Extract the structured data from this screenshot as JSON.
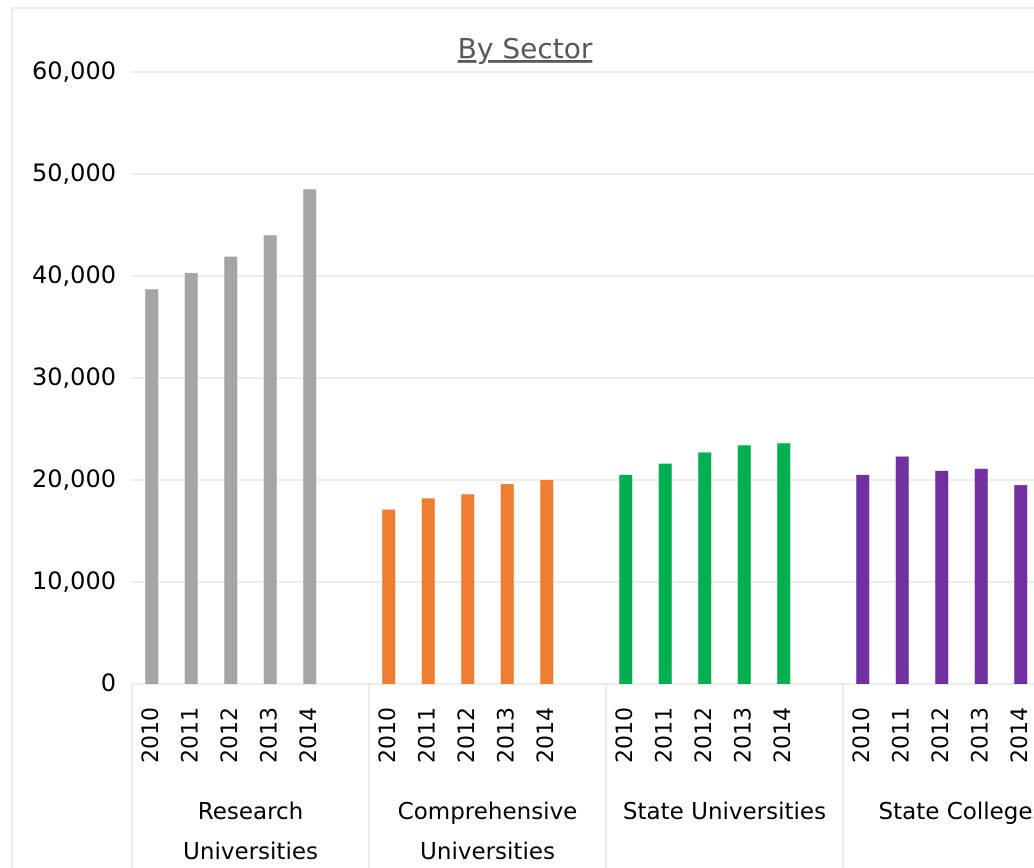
{
  "chart_data": {
    "type": "bar",
    "title": "By Sector",
    "groups": [
      {
        "name": "Research Universities",
        "color": "#a5a5a5",
        "categories": [
          "2010",
          "2011",
          "2012",
          "2013",
          "2014"
        ],
        "values": [
          38700,
          40300,
          41900,
          44000,
          48500
        ]
      },
      {
        "name": "Comprehensive Universities",
        "color": "#ed7d31",
        "categories": [
          "2010",
          "2011",
          "2012",
          "2013",
          "2014"
        ],
        "values": [
          17100,
          18200,
          18600,
          19600,
          20000
        ]
      },
      {
        "name": "State Universities",
        "color": "#00b050",
        "categories": [
          "2010",
          "2011",
          "2012",
          "2013",
          "2014"
        ],
        "values": [
          20500,
          21600,
          22700,
          23400,
          23600
        ]
      },
      {
        "name": "State Colleges",
        "color": "#7030a0",
        "categories": [
          "2010",
          "2011",
          "2012",
          "2013",
          "2014"
        ],
        "values": [
          20500,
          22300,
          20900,
          21100,
          19500
        ]
      }
    ],
    "ylim": [
      0,
      60000
    ],
    "yticks": [
      0,
      {
        "value": 10000,
        "label": "10,000"
      },
      {
        "value": 20000,
        "label": "20,000"
      },
      {
        "value": 30000,
        "label": "30,000"
      },
      {
        "value": 40000,
        "label": "40,000"
      },
      {
        "value": 50000,
        "label": "50,000"
      },
      {
        "value": 60000,
        "label": "60,000"
      }
    ],
    "grid": true
  }
}
